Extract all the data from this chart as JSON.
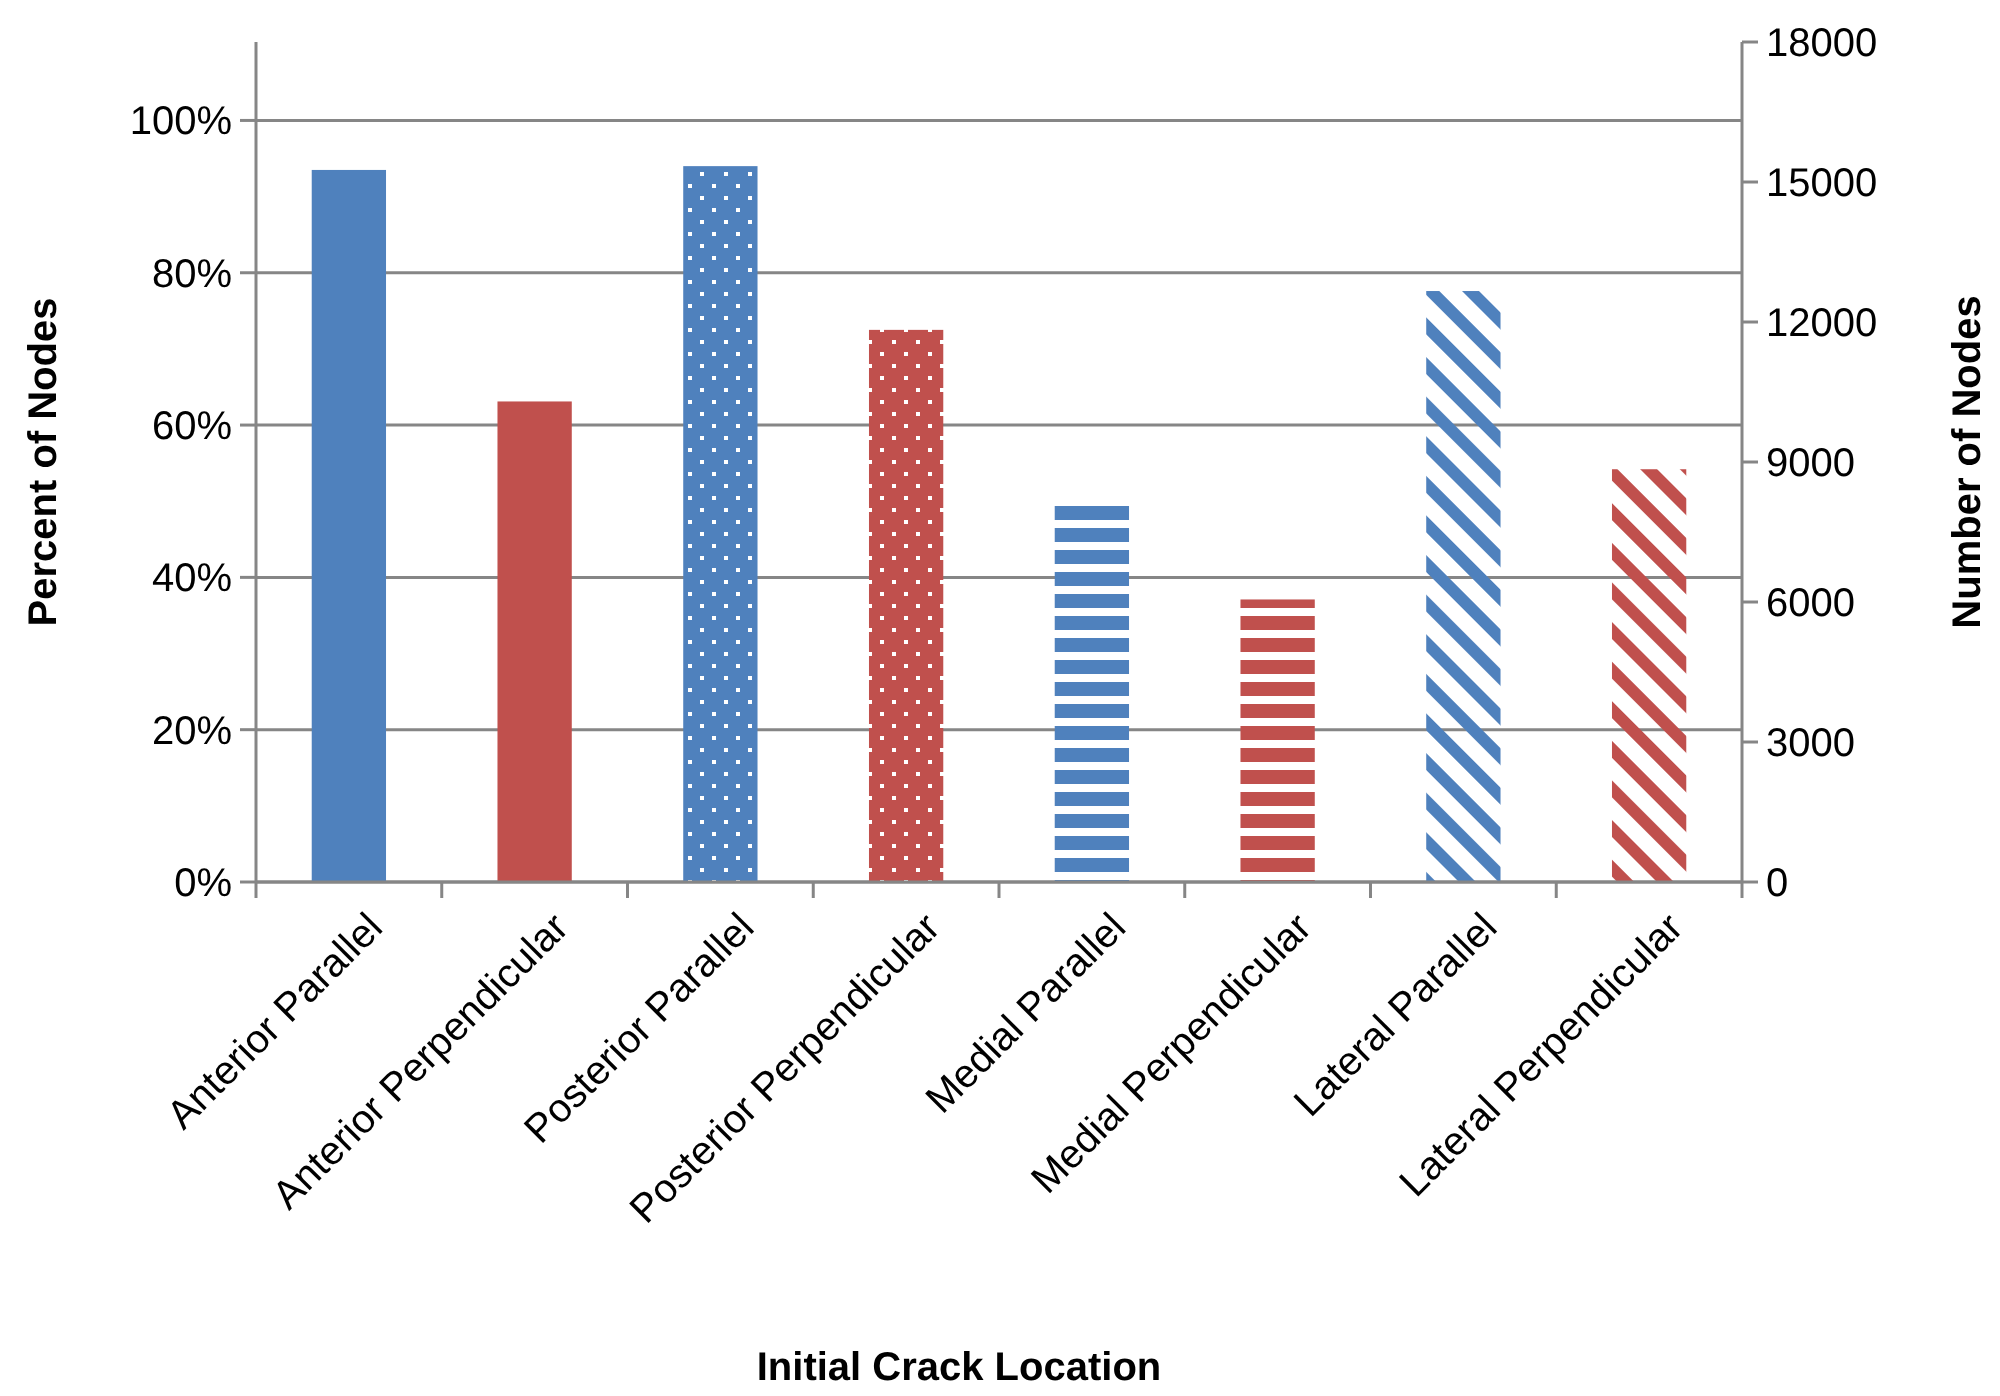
{
  "chart_data": {
    "type": "bar",
    "xlabel": "Initial Crack Location",
    "ylabel": "Percent of Nodes",
    "y2label": "Number of Nodes",
    "categories": [
      "Anterior Parallel",
      "Anterior Perpendicular",
      "Posterior Parallel",
      "Posterior Perpendicular",
      "Medial Parallel",
      "Medial Perpendicular",
      "Lateral Parallel",
      "Lateral Perpendicular"
    ],
    "values": [
      93.5,
      63.1,
      94.0,
      72.5,
      49.5,
      37.1,
      77.6,
      54.2
    ],
    "colors": [
      "#4f81bd",
      "#c0504d",
      "#4f81bd",
      "#c0504d",
      "#4f81bd",
      "#c0504d",
      "#4f81bd",
      "#c0504d"
    ],
    "ylim": [
      0,
      110.3
    ],
    "yticks": [
      {
        "value": 0,
        "label": "0%"
      },
      {
        "value": 20,
        "label": "20%"
      },
      {
        "value": 40,
        "label": "40%"
      },
      {
        "value": 60,
        "label": "60%"
      },
      {
        "value": 80,
        "label": "80%"
      },
      {
        "value": 100,
        "label": "100%"
      }
    ],
    "y2lim": [
      0,
      18000
    ],
    "y2ticks": [
      0,
      3000,
      6000,
      9000,
      12000,
      15000,
      18000
    ],
    "grid": "y"
  }
}
